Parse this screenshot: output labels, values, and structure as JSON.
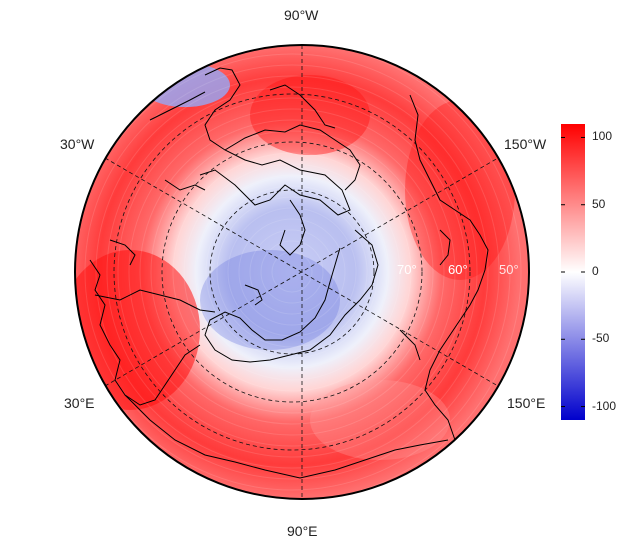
{
  "map": {
    "projection": "north-polar-stereographic",
    "center_longitude_label": "90°E at bottom",
    "longitude_labels": {
      "top": "90°W",
      "upper_left": "30°W",
      "upper_right": "150°W",
      "lower_left": "30°E",
      "lower_right": "150°E",
      "bottom": "90°E"
    },
    "latitude_labels": [
      "70°",
      "60°",
      "50°"
    ],
    "colormap": {
      "low": "#0000cc",
      "mid": "#ffffff",
      "high": "#ff0000"
    },
    "field_description_regions": {
      "polar_cap": "negative (blue)",
      "midlatitudes": "positive (red)",
      "small_negative_patch": "near 90°W–60°W high latitude edge"
    }
  },
  "colorbar": {
    "min": -110,
    "max": 110,
    "ticks": [
      "100",
      "50",
      "0",
      "-50",
      "-100"
    ],
    "tick_values": [
      100,
      50,
      0,
      -50,
      -100
    ]
  }
}
